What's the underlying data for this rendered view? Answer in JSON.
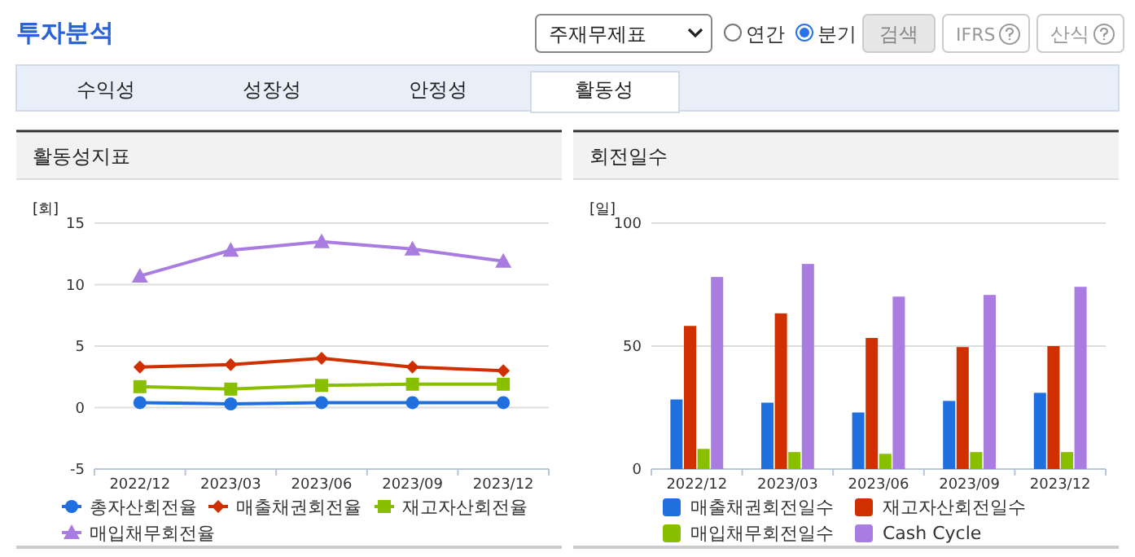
{
  "chart_data": [
    {
      "type": "other",
      "title": "투자분석",
      "annotations": [
        "주재무제표",
        "연간",
        "분기",
        "검색",
        "IFRS",
        "산식",
        "수익성",
        "성장성",
        "안정성",
        "활동성"
      ]
    },
    {
      "type": "line",
      "title": "활동성지표",
      "ylabel": "[회]",
      "categories": [
        "2022/12",
        "2023/03",
        "2023/06",
        "2023/09",
        "2023/12"
      ],
      "ylim": [
        -5,
        15
      ],
      "yticks": [
        -5,
        0,
        5,
        10,
        15
      ],
      "grid": "y",
      "legend": "bottom",
      "line_style": "solid",
      "series": [
        {
          "name": "총자산회전율",
          "color": "#1f6fdf",
          "marker": "circle",
          "values": [
            0.4,
            0.3,
            0.4,
            0.4,
            0.4
          ]
        },
        {
          "name": "매출채권회전율",
          "color": "#d03000",
          "marker": "diamond",
          "values": [
            3.3,
            3.5,
            4,
            3.3,
            3
          ]
        },
        {
          "name": "재고자산회전율",
          "color": "#88c000",
          "marker": "square",
          "values": [
            1.7,
            1.5,
            1.8,
            1.9,
            1.9
          ]
        },
        {
          "name": "매입채무회전율",
          "color": "#a87ce0",
          "marker": "triangle",
          "values": [
            10.7,
            12.8,
            13.5,
            12.9,
            11.9
          ]
        }
      ]
    },
    {
      "type": "bar",
      "title": "회전일수",
      "ylabel": "[일]",
      "categories": [
        "2022/12",
        "2023/03",
        "2023/06",
        "2023/09",
        "2023/12"
      ],
      "ylim": [
        0,
        100
      ],
      "yticks": [
        0,
        50,
        100
      ],
      "grid": "y",
      "legend": "bottom",
      "series": [
        {
          "name": "매출채권회전일수",
          "color": "#1f6fdf",
          "values": [
            28.3,
            27,
            23,
            27.7,
            31
          ]
        },
        {
          "name": "재고자산회전일수",
          "color": "#d03000",
          "values": [
            58.2,
            63.3,
            53.3,
            49.6,
            50
          ]
        },
        {
          "name": "매입채무회전일수",
          "color": "#88c000",
          "values": [
            8.2,
            6.9,
            6.2,
            6.9,
            6.9
          ]
        },
        {
          "name": "Cash Cycle",
          "color": "#a87ce0",
          "values": [
            78.1,
            83.4,
            70.1,
            70.8,
            74.1
          ]
        }
      ]
    }
  ]
}
